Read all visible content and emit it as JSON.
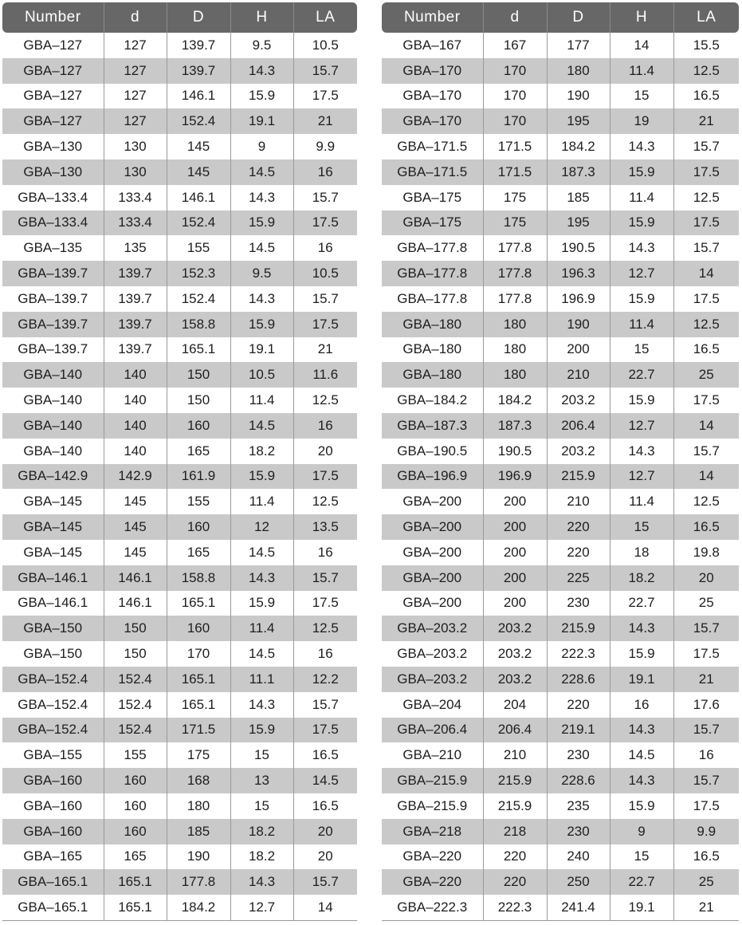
{
  "headers": [
    "Number",
    "d",
    "D",
    "H",
    "LA"
  ],
  "left_rows": [
    [
      "GBA–127",
      "127",
      "139.7",
      "9.5",
      "10.5"
    ],
    [
      "GBA–127",
      "127",
      "139.7",
      "14.3",
      "15.7"
    ],
    [
      "GBA–127",
      "127",
      "146.1",
      "15.9",
      "17.5"
    ],
    [
      "GBA–127",
      "127",
      "152.4",
      "19.1",
      "21"
    ],
    [
      "GBA–130",
      "130",
      "145",
      "9",
      "9.9"
    ],
    [
      "GBA–130",
      "130",
      "145",
      "14.5",
      "16"
    ],
    [
      "GBA–133.4",
      "133.4",
      "146.1",
      "14.3",
      "15.7"
    ],
    [
      "GBA–133.4",
      "133.4",
      "152.4",
      "15.9",
      "17.5"
    ],
    [
      "GBA–135",
      "135",
      "155",
      "14.5",
      "16"
    ],
    [
      "GBA–139.7",
      "139.7",
      "152.3",
      "9.5",
      "10.5"
    ],
    [
      "GBA–139.7",
      "139.7",
      "152.4",
      "14.3",
      "15.7"
    ],
    [
      "GBA–139.7",
      "139.7",
      "158.8",
      "15.9",
      "17.5"
    ],
    [
      "GBA–139.7",
      "139.7",
      "165.1",
      "19.1",
      "21"
    ],
    [
      "GBA–140",
      "140",
      "150",
      "10.5",
      "11.6"
    ],
    [
      "GBA–140",
      "140",
      "150",
      "11.4",
      "12.5"
    ],
    [
      "GBA–140",
      "140",
      "160",
      "14.5",
      "16"
    ],
    [
      "GBA–140",
      "140",
      "165",
      "18.2",
      "20"
    ],
    [
      "GBA–142.9",
      "142.9",
      "161.9",
      "15.9",
      "17.5"
    ],
    [
      "GBA–145",
      "145",
      "155",
      "11.4",
      "12.5"
    ],
    [
      "GBA–145",
      "145",
      "160",
      "12",
      "13.5"
    ],
    [
      "GBA–145",
      "145",
      "165",
      "14.5",
      "16"
    ],
    [
      "GBA–146.1",
      "146.1",
      "158.8",
      "14.3",
      "15.7"
    ],
    [
      "GBA–146.1",
      "146.1",
      "165.1",
      "15.9",
      "17.5"
    ],
    [
      "GBA–150",
      "150",
      "160",
      "11.4",
      "12.5"
    ],
    [
      "GBA–150",
      "150",
      "170",
      "14.5",
      "16"
    ],
    [
      "GBA–152.4",
      "152.4",
      "165.1",
      "11.1",
      "12.2"
    ],
    [
      "GBA–152.4",
      "152.4",
      "165.1",
      "14.3",
      "15.7"
    ],
    [
      "GBA–152.4",
      "152.4",
      "171.5",
      "15.9",
      "17.5"
    ],
    [
      "GBA–155",
      "155",
      "175",
      "15",
      "16.5"
    ],
    [
      "GBA–160",
      "160",
      "168",
      "13",
      "14.5"
    ],
    [
      "GBA–160",
      "160",
      "180",
      "15",
      "16.5"
    ],
    [
      "GBA–160",
      "160",
      "185",
      "18.2",
      "20"
    ],
    [
      "GBA–165",
      "165",
      "190",
      "18.2",
      "20"
    ],
    [
      "GBA–165.1",
      "165.1",
      "177.8",
      "14.3",
      "15.7"
    ],
    [
      "GBA–165.1",
      "165.1",
      "184.2",
      "12.7",
      "14"
    ]
  ],
  "right_rows": [
    [
      "GBA–167",
      "167",
      "177",
      "14",
      "15.5"
    ],
    [
      "GBA–170",
      "170",
      "180",
      "11.4",
      "12.5"
    ],
    [
      "GBA–170",
      "170",
      "190",
      "15",
      "16.5"
    ],
    [
      "GBA–170",
      "170",
      "195",
      "19",
      "21"
    ],
    [
      "GBA–171.5",
      "171.5",
      "184.2",
      "14.3",
      "15.7"
    ],
    [
      "GBA–171.5",
      "171.5",
      "187.3",
      "15.9",
      "17.5"
    ],
    [
      "GBA–175",
      "175",
      "185",
      "11.4",
      "12.5"
    ],
    [
      "GBA–175",
      "175",
      "195",
      "15.9",
      "17.5"
    ],
    [
      "GBA–177.8",
      "177.8",
      "190.5",
      "14.3",
      "15.7"
    ],
    [
      "GBA–177.8",
      "177.8",
      "196.3",
      "12.7",
      "14"
    ],
    [
      "GBA–177.8",
      "177.8",
      "196.9",
      "15.9",
      "17.5"
    ],
    [
      "GBA–180",
      "180",
      "190",
      "11.4",
      "12.5"
    ],
    [
      "GBA–180",
      "180",
      "200",
      "15",
      "16.5"
    ],
    [
      "GBA–180",
      "180",
      "210",
      "22.7",
      "25"
    ],
    [
      "GBA–184.2",
      "184.2",
      "203.2",
      "15.9",
      "17.5"
    ],
    [
      "GBA–187.3",
      "187.3",
      "206.4",
      "12.7",
      "14"
    ],
    [
      "GBA–190.5",
      "190.5",
      "203.2",
      "14.3",
      "15.7"
    ],
    [
      "GBA–196.9",
      "196.9",
      "215.9",
      "12.7",
      "14"
    ],
    [
      "GBA–200",
      "200",
      "210",
      "11.4",
      "12.5"
    ],
    [
      "GBA–200",
      "200",
      "220",
      "15",
      "16.5"
    ],
    [
      "GBA–200",
      "200",
      "220",
      "18",
      "19.8"
    ],
    [
      "GBA–200",
      "200",
      "225",
      "18.2",
      "20"
    ],
    [
      "GBA–200",
      "200",
      "230",
      "22.7",
      "25"
    ],
    [
      "GBA–203.2",
      "203.2",
      "215.9",
      "14.3",
      "15.7"
    ],
    [
      "GBA–203.2",
      "203.2",
      "222.3",
      "15.9",
      "17.5"
    ],
    [
      "GBA–203.2",
      "203.2",
      "228.6",
      "19.1",
      "21"
    ],
    [
      "GBA–204",
      "204",
      "220",
      "16",
      "17.6"
    ],
    [
      "GBA–206.4",
      "206.4",
      "219.1",
      "14.3",
      "15.7"
    ],
    [
      "GBA–210",
      "210",
      "230",
      "14.5",
      "16"
    ],
    [
      "GBA–215.9",
      "215.9",
      "228.6",
      "14.3",
      "15.7"
    ],
    [
      "GBA–215.9",
      "215.9",
      "235",
      "15.9",
      "17.5"
    ],
    [
      "GBA–218",
      "218",
      "230",
      "9",
      "9.9"
    ],
    [
      "GBA–220",
      "220",
      "240",
      "15",
      "16.5"
    ],
    [
      "GBA–220",
      "220",
      "250",
      "22.7",
      "25"
    ],
    [
      "GBA–222.3",
      "222.3",
      "241.4",
      "19.1",
      "21"
    ]
  ],
  "colors": {
    "header_bg": "#676767",
    "alt_row_bg": "#c9c9c9",
    "text": "#1e1e1e"
  }
}
